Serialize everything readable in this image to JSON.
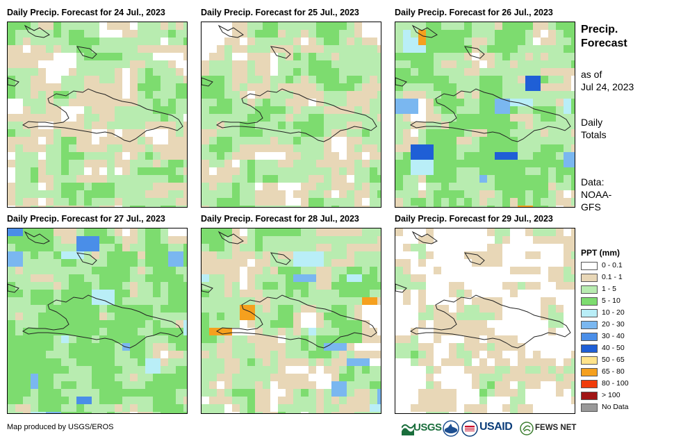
{
  "panels": [
    {
      "title": "Daily Precip. Forecast for 24 Jul., 2023",
      "seed": 1,
      "wet": 0.5,
      "hot": []
    },
    {
      "title": "Daily Precip. Forecast for 25 Jul., 2023",
      "seed": 2,
      "wet": 0.55,
      "hot": []
    },
    {
      "title": "Daily Precip. Forecast for 26 Jul., 2023",
      "seed": 3,
      "wet": 0.7,
      "hot": [
        "10 - 20",
        "20 - 30",
        "40 - 50",
        "65 - 80"
      ]
    },
    {
      "title": "Daily Precip. Forecast for 27 Jul., 2023",
      "seed": 4,
      "wet": 0.75,
      "hot": [
        "10 - 20",
        "20 - 30",
        "30 - 40"
      ]
    },
    {
      "title": "Daily Precip. Forecast for 28 Jul., 2023",
      "seed": 5,
      "wet": 0.55,
      "hot": [
        "10 - 20",
        "20 - 30",
        "65 - 80"
      ]
    },
    {
      "title": "Daily Precip. Forecast for 29 Jul., 2023",
      "seed": 6,
      "wet": 0.3,
      "hot": []
    }
  ],
  "side": {
    "title_line1": "Precip.",
    "title_line2": "Forecast",
    "asof_line1": "as of",
    "asof_line2": "Jul 24, 2023",
    "totals_line1": "Daily",
    "totals_line2": "Totals",
    "data_line1": "Data:",
    "data_line2": "NOAA-",
    "data_line3": "GFS"
  },
  "legend": {
    "title": "PPT (mm)",
    "items": [
      {
        "label": "0 - 0.1",
        "color": "#ffffff"
      },
      {
        "label": "0.1 - 1",
        "color": "#e8d7b7"
      },
      {
        "label": "1 - 5",
        "color": "#b8ecb0"
      },
      {
        "label": "5 - 10",
        "color": "#7ddc6f"
      },
      {
        "label": "10 - 20",
        "color": "#b9eef7"
      },
      {
        "label": "20 - 30",
        "color": "#7ab7f0"
      },
      {
        "label": "30 - 40",
        "color": "#4a8ee8"
      },
      {
        "label": "40 - 50",
        "color": "#1f5fd6"
      },
      {
        "label": "50 - 65",
        "color": "#ffe38a"
      },
      {
        "label": "65 - 80",
        "color": "#f5a01e"
      },
      {
        "label": "80 - 100",
        "color": "#f03c0a"
      },
      {
        "label": "> 100",
        "color": "#a01414"
      },
      {
        "label": "No Data",
        "color": "#999999"
      }
    ]
  },
  "footer": {
    "credit": "Map produced by USGS/EROS",
    "logo_usgs": "USGS",
    "logo_usaid": "USAID",
    "logo_fews": "FEWS NET"
  }
}
